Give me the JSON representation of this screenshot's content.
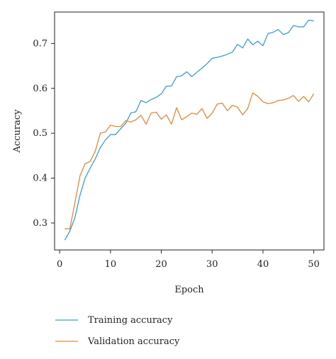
{
  "chart_data": {
    "type": "line",
    "xlabel": "Epoch",
    "ylabel": "Accuracy",
    "xlim": [
      -1,
      52
    ],
    "ylim": [
      0.24,
      0.77
    ],
    "xticks": [
      0,
      10,
      20,
      30,
      40,
      50
    ],
    "yticks": [
      0.3,
      0.4,
      0.5,
      0.6,
      0.7
    ],
    "grid": false,
    "legend_position": "bottom",
    "series": [
      {
        "name": "Training accuracy",
        "color": "#3a9fca",
        "x": [
          1,
          2,
          3,
          4,
          5,
          6,
          7,
          8,
          9,
          10,
          11,
          12,
          13,
          14,
          15,
          16,
          17,
          18,
          19,
          20,
          21,
          22,
          23,
          24,
          25,
          26,
          27,
          28,
          29,
          30,
          31,
          32,
          33,
          34,
          35,
          36,
          37,
          38,
          39,
          40,
          41,
          42,
          43,
          44,
          45,
          46,
          47,
          48,
          49,
          50
        ],
        "values": [
          0.262,
          0.282,
          0.312,
          0.362,
          0.4,
          0.422,
          0.443,
          0.468,
          0.485,
          0.497,
          0.497,
          0.51,
          0.522,
          0.545,
          0.548,
          0.573,
          0.568,
          0.575,
          0.58,
          0.588,
          0.605,
          0.605,
          0.626,
          0.628,
          0.637,
          0.626,
          0.636,
          0.645,
          0.655,
          0.667,
          0.669,
          0.672,
          0.676,
          0.681,
          0.698,
          0.69,
          0.71,
          0.697,
          0.705,
          0.695,
          0.722,
          0.725,
          0.731,
          0.72,
          0.724,
          0.74,
          0.737,
          0.737,
          0.752,
          0.75
        ]
      },
      {
        "name": "Validation accuracy",
        "color": "#e08a37",
        "x": [
          1,
          2,
          3,
          4,
          5,
          6,
          7,
          8,
          9,
          10,
          11,
          12,
          13,
          14,
          15,
          16,
          17,
          18,
          19,
          20,
          21,
          22,
          23,
          24,
          25,
          26,
          27,
          28,
          29,
          30,
          31,
          32,
          33,
          34,
          35,
          36,
          37,
          38,
          39,
          40,
          41,
          42,
          43,
          44,
          45,
          46,
          47,
          48,
          49,
          50
        ],
        "values": [
          0.287,
          0.287,
          0.345,
          0.405,
          0.432,
          0.437,
          0.46,
          0.5,
          0.503,
          0.518,
          0.515,
          0.515,
          0.528,
          0.525,
          0.53,
          0.54,
          0.52,
          0.545,
          0.547,
          0.531,
          0.541,
          0.52,
          0.557,
          0.53,
          0.537,
          0.545,
          0.542,
          0.555,
          0.533,
          0.545,
          0.565,
          0.567,
          0.55,
          0.562,
          0.558,
          0.541,
          0.555,
          0.59,
          0.582,
          0.57,
          0.566,
          0.568,
          0.573,
          0.574,
          0.578,
          0.584,
          0.571,
          0.582,
          0.57,
          0.588
        ]
      }
    ]
  }
}
